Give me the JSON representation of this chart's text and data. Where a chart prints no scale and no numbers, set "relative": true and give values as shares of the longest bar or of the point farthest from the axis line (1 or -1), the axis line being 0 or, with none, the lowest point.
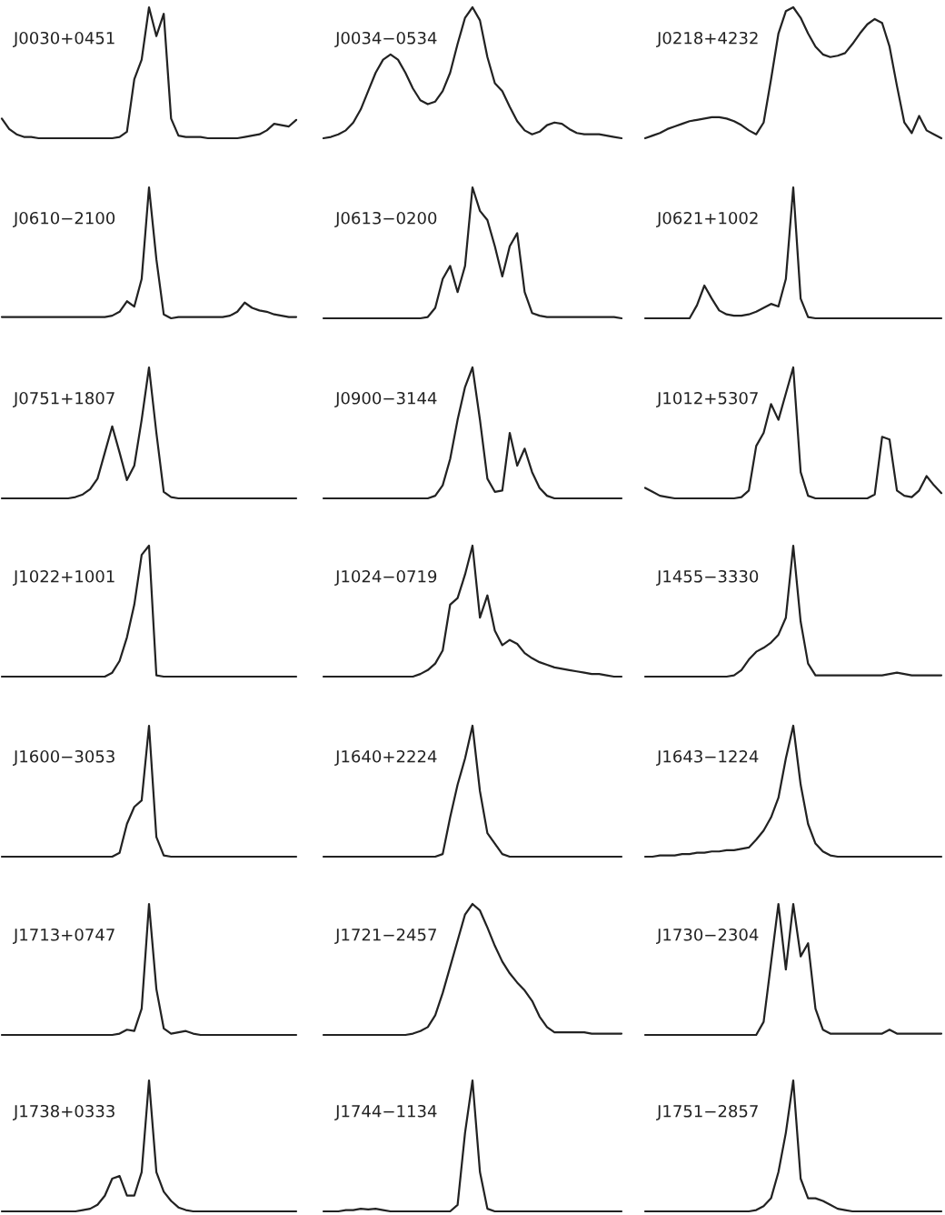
{
  "chart_data": [
    {
      "type": "line",
      "title": "J0030+0451",
      "relative": true,
      "color": "#222222",
      "categories": [
        null,
        null,
        null,
        null,
        null,
        null,
        null,
        null,
        null,
        null,
        null,
        null,
        null,
        null,
        null,
        null,
        null,
        null,
        null,
        null,
        null,
        null,
        null,
        null,
        null,
        null,
        null,
        null,
        null,
        null,
        null,
        null,
        null,
        null,
        null,
        null,
        null,
        null,
        null,
        null,
        null
      ],
      "values": [
        0.15,
        0.07,
        0.03,
        0.01,
        0.01,
        0,
        0,
        0,
        0,
        0,
        0,
        0,
        0,
        0,
        0,
        0,
        0.01,
        0.05,
        0.45,
        0.6,
        1.0,
        0.78,
        0.95,
        0.15,
        0.02,
        0.01,
        0.01,
        0.01,
        0,
        0,
        0,
        0,
        0,
        0.01,
        0.02,
        0.03,
        0.06,
        0.11,
        0.1,
        0.09,
        0.14
      ]
    },
    {
      "type": "line",
      "title": "J0034−0534",
      "relative": true,
      "color": "#222222",
      "categories": [
        null,
        null,
        null,
        null,
        null,
        null,
        null,
        null,
        null,
        null,
        null,
        null,
        null,
        null,
        null,
        null,
        null,
        null,
        null,
        null,
        null,
        null,
        null,
        null,
        null,
        null,
        null,
        null,
        null,
        null,
        null,
        null,
        null,
        null,
        null,
        null,
        null,
        null,
        null,
        null,
        null
      ],
      "values": [
        0,
        0.01,
        0.03,
        0.06,
        0.12,
        0.22,
        0.36,
        0.5,
        0.6,
        0.64,
        0.6,
        0.5,
        0.38,
        0.29,
        0.26,
        0.28,
        0.36,
        0.5,
        0.72,
        0.92,
        1.0,
        0.9,
        0.62,
        0.42,
        0.36,
        0.24,
        0.13,
        0.06,
        0.03,
        0.05,
        0.1,
        0.12,
        0.11,
        0.07,
        0.04,
        0.03,
        0.03,
        0.03,
        0.02,
        0.01,
        0
      ]
    },
    {
      "type": "line",
      "title": "J0218+4232",
      "relative": true,
      "color": "#222222",
      "categories": [
        null,
        null,
        null,
        null,
        null,
        null,
        null,
        null,
        null,
        null,
        null,
        null,
        null,
        null,
        null,
        null,
        null,
        null,
        null,
        null,
        null,
        null,
        null,
        null,
        null,
        null,
        null,
        null,
        null,
        null,
        null,
        null,
        null,
        null,
        null,
        null,
        null,
        null,
        null,
        null,
        null
      ],
      "values": [
        0,
        0.02,
        0.04,
        0.07,
        0.09,
        0.11,
        0.13,
        0.14,
        0.15,
        0.16,
        0.16,
        0.15,
        0.13,
        0.1,
        0.06,
        0.03,
        0.12,
        0.45,
        0.8,
        0.97,
        1.0,
        0.92,
        0.8,
        0.7,
        0.64,
        0.62,
        0.63,
        0.65,
        0.72,
        0.8,
        0.87,
        0.91,
        0.88,
        0.7,
        0.4,
        0.12,
        0.04,
        0.17,
        0.06,
        0.03,
        0
      ]
    },
    {
      "type": "line",
      "title": "J0610−2100",
      "relative": true,
      "color": "#222222",
      "categories": [
        null,
        null,
        null,
        null,
        null,
        null,
        null,
        null,
        null,
        null,
        null,
        null,
        null,
        null,
        null,
        null,
        null,
        null,
        null,
        null,
        null,
        null,
        null,
        null,
        null,
        null,
        null,
        null,
        null,
        null,
        null,
        null,
        null,
        null,
        null,
        null,
        null,
        null,
        null,
        null,
        null
      ],
      "values": [
        0.01,
        0.01,
        0.01,
        0.01,
        0.01,
        0.01,
        0.01,
        0.01,
        0.01,
        0.01,
        0.01,
        0.01,
        0.01,
        0.01,
        0.01,
        0.02,
        0.05,
        0.13,
        0.09,
        0.3,
        1.0,
        0.45,
        0.03,
        0,
        0.01,
        0.01,
        0.01,
        0.01,
        0.01,
        0.01,
        0.01,
        0.02,
        0.05,
        0.12,
        0.08,
        0.06,
        0.05,
        0.03,
        0.02,
        0.01,
        0.01
      ]
    },
    {
      "type": "line",
      "title": "J0613−0200",
      "relative": true,
      "color": "#222222",
      "categories": [
        null,
        null,
        null,
        null,
        null,
        null,
        null,
        null,
        null,
        null,
        null,
        null,
        null,
        null,
        null,
        null,
        null,
        null,
        null,
        null,
        null,
        null,
        null,
        null,
        null,
        null,
        null,
        null,
        null,
        null,
        null,
        null,
        null,
        null,
        null,
        null,
        null,
        null,
        null,
        null,
        null
      ],
      "values": [
        0,
        0,
        0,
        0,
        0,
        0,
        0,
        0,
        0,
        0,
        0,
        0,
        0,
        0,
        0.01,
        0.08,
        0.3,
        0.4,
        0.2,
        0.4,
        1.0,
        0.82,
        0.75,
        0.55,
        0.32,
        0.55,
        0.65,
        0.2,
        0.04,
        0.02,
        0.01,
        0.01,
        0.01,
        0.01,
        0.01,
        0.01,
        0.01,
        0.01,
        0.01,
        0.01,
        0
      ]
    },
    {
      "type": "line",
      "title": "J0621+1002",
      "relative": true,
      "color": "#222222",
      "categories": [
        null,
        null,
        null,
        null,
        null,
        null,
        null,
        null,
        null,
        null,
        null,
        null,
        null,
        null,
        null,
        null,
        null,
        null,
        null,
        null,
        null,
        null,
        null,
        null,
        null,
        null,
        null,
        null,
        null,
        null,
        null,
        null,
        null,
        null,
        null,
        null,
        null,
        null,
        null,
        null,
        null
      ],
      "values": [
        0,
        0,
        0,
        0,
        0,
        0,
        0,
        0.1,
        0.25,
        0.15,
        0.06,
        0.03,
        0.02,
        0.02,
        0.03,
        0.05,
        0.08,
        0.11,
        0.09,
        0.3,
        1.0,
        0.15,
        0.01,
        0,
        0,
        0,
        0,
        0,
        0,
        0,
        0,
        0,
        0,
        0,
        0,
        0,
        0,
        0,
        0,
        0,
        0
      ]
    },
    {
      "type": "line",
      "title": "J0751+1807",
      "relative": true,
      "color": "#222222",
      "categories": [
        null,
        null,
        null,
        null,
        null,
        null,
        null,
        null,
        null,
        null,
        null,
        null,
        null,
        null,
        null,
        null,
        null,
        null,
        null,
        null,
        null,
        null,
        null,
        null,
        null,
        null,
        null,
        null,
        null,
        null,
        null,
        null,
        null,
        null,
        null,
        null,
        null,
        null,
        null,
        null,
        null
      ],
      "values": [
        0,
        0,
        0,
        0,
        0,
        0,
        0,
        0,
        0,
        0,
        0.01,
        0.03,
        0.07,
        0.15,
        0.35,
        0.55,
        0.35,
        0.14,
        0.25,
        0.6,
        1.0,
        0.5,
        0.05,
        0.01,
        0,
        0,
        0,
        0,
        0,
        0,
        0,
        0,
        0,
        0,
        0,
        0,
        0,
        0,
        0,
        0,
        0
      ]
    },
    {
      "type": "line",
      "title": "J0900−3144",
      "relative": true,
      "color": "#222222",
      "categories": [
        null,
        null,
        null,
        null,
        null,
        null,
        null,
        null,
        null,
        null,
        null,
        null,
        null,
        null,
        null,
        null,
        null,
        null,
        null,
        null,
        null,
        null,
        null,
        null,
        null,
        null,
        null,
        null,
        null,
        null,
        null,
        null,
        null,
        null,
        null,
        null,
        null,
        null,
        null,
        null,
        null
      ],
      "values": [
        0,
        0,
        0,
        0,
        0,
        0,
        0,
        0,
        0,
        0,
        0,
        0,
        0,
        0,
        0,
        0.02,
        0.1,
        0.3,
        0.6,
        0.85,
        1.0,
        0.6,
        0.15,
        0.05,
        0.06,
        0.5,
        0.25,
        0.38,
        0.2,
        0.08,
        0.02,
        0,
        0,
        0,
        0,
        0,
        0,
        0,
        0,
        0,
        0
      ]
    },
    {
      "type": "line",
      "title": "J1012+5307",
      "relative": true,
      "color": "#222222",
      "categories": [
        null,
        null,
        null,
        null,
        null,
        null,
        null,
        null,
        null,
        null,
        null,
        null,
        null,
        null,
        null,
        null,
        null,
        null,
        null,
        null,
        null,
        null,
        null,
        null,
        null,
        null,
        null,
        null,
        null,
        null,
        null,
        null,
        null,
        null,
        null,
        null,
        null,
        null,
        null,
        null,
        null
      ],
      "values": [
        0.08,
        0.05,
        0.02,
        0.01,
        0,
        0,
        0,
        0,
        0,
        0,
        0,
        0,
        0,
        0.01,
        0.06,
        0.4,
        0.5,
        0.72,
        0.6,
        0.8,
        1.0,
        0.2,
        0.02,
        0,
        0,
        0,
        0,
        0,
        0,
        0,
        0,
        0.03,
        0.47,
        0.45,
        0.06,
        0.02,
        0.01,
        0.06,
        0.17,
        0.1,
        0.04
      ]
    },
    {
      "type": "line",
      "title": "J1022+1001",
      "relative": true,
      "color": "#222222",
      "categories": [
        null,
        null,
        null,
        null,
        null,
        null,
        null,
        null,
        null,
        null,
        null,
        null,
        null,
        null,
        null,
        null,
        null,
        null,
        null,
        null,
        null,
        null,
        null,
        null,
        null,
        null,
        null,
        null,
        null,
        null,
        null,
        null,
        null,
        null,
        null,
        null,
        null,
        null,
        null,
        null,
        null
      ],
      "values": [
        0,
        0,
        0,
        0,
        0,
        0,
        0,
        0,
        0,
        0,
        0,
        0,
        0,
        0,
        0,
        0.03,
        0.12,
        0.3,
        0.55,
        0.93,
        1.0,
        0.01,
        0,
        0,
        0,
        0,
        0,
        0,
        0,
        0,
        0,
        0,
        0,
        0,
        0,
        0,
        0,
        0,
        0,
        0,
        0
      ]
    },
    {
      "type": "line",
      "title": "J1024−0719",
      "relative": true,
      "color": "#222222",
      "categories": [
        null,
        null,
        null,
        null,
        null,
        null,
        null,
        null,
        null,
        null,
        null,
        null,
        null,
        null,
        null,
        null,
        null,
        null,
        null,
        null,
        null,
        null,
        null,
        null,
        null,
        null,
        null,
        null,
        null,
        null,
        null,
        null,
        null,
        null,
        null,
        null,
        null,
        null,
        null,
        null,
        null
      ],
      "values": [
        0,
        0,
        0,
        0,
        0,
        0,
        0,
        0,
        0,
        0,
        0,
        0,
        0,
        0.02,
        0.05,
        0.1,
        0.2,
        0.55,
        0.6,
        0.78,
        1.0,
        0.45,
        0.62,
        0.35,
        0.24,
        0.28,
        0.25,
        0.18,
        0.14,
        0.11,
        0.09,
        0.07,
        0.06,
        0.05,
        0.04,
        0.03,
        0.02,
        0.02,
        0.01,
        0,
        0
      ]
    },
    {
      "type": "line",
      "title": "J1455−3330",
      "relative": true,
      "color": "#222222",
      "categories": [
        null,
        null,
        null,
        null,
        null,
        null,
        null,
        null,
        null,
        null,
        null,
        null,
        null,
        null,
        null,
        null,
        null,
        null,
        null,
        null,
        null,
        null,
        null,
        null,
        null,
        null,
        null,
        null,
        null,
        null,
        null,
        null,
        null,
        null,
        null,
        null,
        null,
        null,
        null,
        null,
        null
      ],
      "values": [
        0,
        0,
        0,
        0,
        0,
        0,
        0,
        0,
        0,
        0,
        0,
        0,
        0.01,
        0.05,
        0.13,
        0.19,
        0.22,
        0.26,
        0.32,
        0.45,
        1.0,
        0.42,
        0.1,
        0.01,
        0.01,
        0.01,
        0.01,
        0.01,
        0.01,
        0.01,
        0.01,
        0.01,
        0.01,
        0.02,
        0.03,
        0.02,
        0.01,
        0.01,
        0.01,
        0.01,
        0.01
      ]
    },
    {
      "type": "line",
      "title": "J1600−3053",
      "relative": true,
      "color": "#222222",
      "categories": [
        null,
        null,
        null,
        null,
        null,
        null,
        null,
        null,
        null,
        null,
        null,
        null,
        null,
        null,
        null,
        null,
        null,
        null,
        null,
        null,
        null,
        null,
        null,
        null,
        null,
        null,
        null,
        null,
        null,
        null,
        null,
        null,
        null,
        null,
        null,
        null,
        null,
        null,
        null,
        null,
        null
      ],
      "values": [
        0,
        0,
        0,
        0,
        0,
        0,
        0,
        0,
        0,
        0,
        0,
        0,
        0,
        0,
        0,
        0,
        0.03,
        0.25,
        0.38,
        0.43,
        1.0,
        0.15,
        0.01,
        0,
        0,
        0,
        0,
        0,
        0,
        0,
        0,
        0,
        0,
        0,
        0,
        0,
        0,
        0,
        0,
        0,
        0
      ]
    },
    {
      "type": "line",
      "title": "J1640+2224",
      "relative": true,
      "color": "#222222",
      "categories": [
        null,
        null,
        null,
        null,
        null,
        null,
        null,
        null,
        null,
        null,
        null,
        null,
        null,
        null,
        null,
        null,
        null,
        null,
        null,
        null,
        null,
        null,
        null,
        null,
        null,
        null,
        null,
        null,
        null,
        null,
        null,
        null,
        null,
        null,
        null,
        null,
        null,
        null,
        null,
        null,
        null
      ],
      "values": [
        0,
        0,
        0,
        0,
        0,
        0,
        0,
        0,
        0,
        0,
        0,
        0,
        0,
        0,
        0,
        0,
        0.02,
        0.3,
        0.55,
        0.75,
        1.0,
        0.5,
        0.18,
        0.1,
        0.02,
        0,
        0,
        0,
        0,
        0,
        0,
        0,
        0,
        0,
        0,
        0,
        0,
        0,
        0,
        0,
        0
      ]
    },
    {
      "type": "line",
      "title": "J1643−1224",
      "relative": true,
      "color": "#222222",
      "categories": [
        null,
        null,
        null,
        null,
        null,
        null,
        null,
        null,
        null,
        null,
        null,
        null,
        null,
        null,
        null,
        null,
        null,
        null,
        null,
        null,
        null,
        null,
        null,
        null,
        null,
        null,
        null,
        null,
        null,
        null,
        null,
        null,
        null,
        null,
        null,
        null,
        null,
        null,
        null,
        null,
        null
      ],
      "values": [
        0,
        0,
        0.01,
        0.01,
        0.01,
        0.02,
        0.02,
        0.03,
        0.03,
        0.04,
        0.04,
        0.05,
        0.05,
        0.06,
        0.07,
        0.13,
        0.2,
        0.3,
        0.45,
        0.75,
        1.0,
        0.55,
        0.25,
        0.1,
        0.04,
        0.01,
        0,
        0,
        0,
        0,
        0,
        0,
        0,
        0,
        0,
        0,
        0,
        0,
        0,
        0,
        0
      ]
    },
    {
      "type": "line",
      "title": "J1713+0747",
      "relative": true,
      "color": "#222222",
      "categories": [
        null,
        null,
        null,
        null,
        null,
        null,
        null,
        null,
        null,
        null,
        null,
        null,
        null,
        null,
        null,
        null,
        null,
        null,
        null,
        null,
        null,
        null,
        null,
        null,
        null,
        null,
        null,
        null,
        null,
        null,
        null,
        null,
        null,
        null,
        null,
        null,
        null,
        null,
        null,
        null,
        null
      ],
      "values": [
        0,
        0,
        0,
        0,
        0,
        0,
        0,
        0,
        0,
        0,
        0,
        0,
        0,
        0,
        0,
        0,
        0.01,
        0.04,
        0.03,
        0.2,
        1.0,
        0.35,
        0.05,
        0.01,
        0.02,
        0.03,
        0.01,
        0,
        0,
        0,
        0,
        0,
        0,
        0,
        0,
        0,
        0,
        0,
        0,
        0,
        0
      ]
    },
    {
      "type": "line",
      "title": "J1721−2457",
      "relative": true,
      "color": "#222222",
      "categories": [
        null,
        null,
        null,
        null,
        null,
        null,
        null,
        null,
        null,
        null,
        null,
        null,
        null,
        null,
        null,
        null,
        null,
        null,
        null,
        null,
        null,
        null,
        null,
        null,
        null,
        null,
        null,
        null,
        null,
        null,
        null,
        null,
        null,
        null,
        null,
        null,
        null,
        null,
        null,
        null,
        null
      ],
      "values": [
        0,
        0,
        0,
        0,
        0,
        0,
        0,
        0,
        0,
        0,
        0,
        0,
        0.01,
        0.03,
        0.06,
        0.15,
        0.32,
        0.52,
        0.72,
        0.92,
        1.0,
        0.95,
        0.82,
        0.68,
        0.56,
        0.47,
        0.4,
        0.34,
        0.26,
        0.14,
        0.06,
        0.02,
        0.02,
        0.02,
        0.02,
        0.02,
        0.01,
        0.01,
        0.01,
        0.01,
        0.01
      ]
    },
    {
      "type": "line",
      "title": "J1730−2304",
      "relative": true,
      "color": "#222222",
      "categories": [
        null,
        null,
        null,
        null,
        null,
        null,
        null,
        null,
        null,
        null,
        null,
        null,
        null,
        null,
        null,
        null,
        null,
        null,
        null,
        null,
        null,
        null,
        null,
        null,
        null,
        null,
        null,
        null,
        null,
        null,
        null,
        null,
        null,
        null,
        null,
        null,
        null,
        null,
        null,
        null,
        null
      ],
      "values": [
        0,
        0,
        0,
        0,
        0,
        0,
        0,
        0,
        0,
        0,
        0,
        0,
        0,
        0,
        0,
        0,
        0.1,
        0.55,
        1.0,
        0.5,
        1.0,
        0.6,
        0.7,
        0.2,
        0.04,
        0.01,
        0.01,
        0.01,
        0.01,
        0.01,
        0.01,
        0.01,
        0.01,
        0.04,
        0.01,
        0.01,
        0.01,
        0.01,
        0.01,
        0.01,
        0.01
      ]
    },
    {
      "type": "line",
      "title": "J1738+0333",
      "relative": true,
      "color": "#222222",
      "categories": [
        null,
        null,
        null,
        null,
        null,
        null,
        null,
        null,
        null,
        null,
        null,
        null,
        null,
        null,
        null,
        null,
        null,
        null,
        null,
        null,
        null,
        null,
        null,
        null,
        null,
        null,
        null,
        null,
        null,
        null,
        null,
        null,
        null,
        null,
        null,
        null,
        null,
        null,
        null,
        null,
        null
      ],
      "values": [
        0,
        0,
        0,
        0,
        0,
        0,
        0,
        0,
        0,
        0,
        0,
        0.01,
        0.02,
        0.05,
        0.12,
        0.25,
        0.27,
        0.12,
        0.12,
        0.3,
        1.0,
        0.3,
        0.15,
        0.08,
        0.03,
        0.01,
        0,
        0,
        0,
        0,
        0,
        0,
        0,
        0,
        0,
        0,
        0,
        0,
        0,
        0,
        0
      ]
    },
    {
      "type": "line",
      "title": "J1744−1134",
      "relative": true,
      "color": "#222222",
      "categories": [
        null,
        null,
        null,
        null,
        null,
        null,
        null,
        null,
        null,
        null,
        null,
        null,
        null,
        null,
        null,
        null,
        null,
        null,
        null,
        null,
        null,
        null,
        null,
        null,
        null,
        null,
        null,
        null,
        null,
        null,
        null,
        null,
        null,
        null,
        null,
        null,
        null,
        null,
        null,
        null,
        null
      ],
      "values": [
        0,
        0,
        0,
        0.01,
        0.01,
        0.02,
        0.015,
        0.02,
        0.01,
        0,
        0,
        0,
        0,
        0,
        0,
        0,
        0,
        0,
        0.05,
        0.6,
        1.0,
        0.3,
        0.02,
        0,
        0,
        0,
        0,
        0,
        0,
        0,
        0,
        0,
        0,
        0,
        0,
        0,
        0,
        0,
        0,
        0,
        0
      ]
    },
    {
      "type": "line",
      "title": "J1751−2857",
      "relative": true,
      "color": "#222222",
      "categories": [
        null,
        null,
        null,
        null,
        null,
        null,
        null,
        null,
        null,
        null,
        null,
        null,
        null,
        null,
        null,
        null,
        null,
        null,
        null,
        null,
        null,
        null,
        null,
        null,
        null,
        null,
        null,
        null,
        null,
        null,
        null,
        null,
        null,
        null,
        null,
        null,
        null,
        null,
        null,
        null,
        null
      ],
      "values": [
        0,
        0,
        0,
        0,
        0,
        0,
        0,
        0,
        0,
        0,
        0,
        0,
        0,
        0,
        0,
        0.01,
        0.04,
        0.1,
        0.3,
        0.6,
        1.0,
        0.25,
        0.1,
        0.1,
        0.08,
        0.05,
        0.02,
        0.01,
        0,
        0,
        0,
        0,
        0,
        0,
        0,
        0,
        0,
        0,
        0,
        0,
        0
      ]
    }
  ]
}
